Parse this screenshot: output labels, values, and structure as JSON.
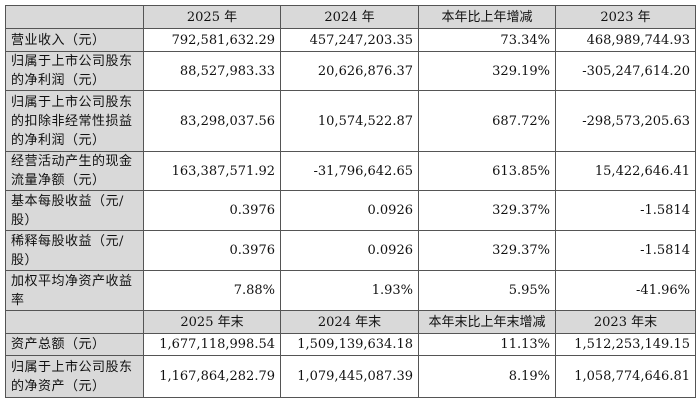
{
  "header1": [
    "",
    "2025 年",
    "2024 年",
    "本年比上年增减",
    "2023 年"
  ],
  "rows1": [
    {
      "label": "营业收入（元）",
      "values": [
        "792,581,632.29",
        "457,247,203.35",
        "73.34%",
        "468,989,744.93"
      ]
    },
    {
      "label": "归属于上市公司股东的净利润（元）",
      "values": [
        "88,527,983.33",
        "20,626,876.37",
        "329.19%",
        "-305,247,614.20"
      ]
    },
    {
      "label": "归属于上市公司股东的扣除非经常性损益的净利润（元）",
      "values": [
        "83,298,037.56",
        "10,574,522.87",
        "687.72%",
        "-298,573,205.63"
      ]
    },
    {
      "label": "经营活动产生的现金流量净额（元）",
      "values": [
        "163,387,571.92",
        "-31,796,642.65",
        "613.85%",
        "15,422,646.41"
      ]
    },
    {
      "label": "基本每股收益（元/股）",
      "values": [
        "0.3976",
        "0.0926",
        "329.37%",
        "-1.5814"
      ]
    },
    {
      "label": "稀释每股收益（元/股）",
      "values": [
        "0.3976",
        "0.0926",
        "329.37%",
        "-1.5814"
      ]
    },
    {
      "label": "加权平均净资产收益率",
      "values": [
        "7.88%",
        "1.93%",
        "5.95%",
        "-41.96%"
      ]
    }
  ],
  "header2": [
    "",
    "2025 年末",
    "2024 年末",
    "本年末比上年末增减",
    "2023 年末"
  ],
  "rows2": [
    {
      "label": "资产总额（元）",
      "values": [
        "1,677,118,998.54",
        "1,509,139,634.18",
        "11.13%",
        "1,512,253,149.15"
      ]
    },
    {
      "label": "归属于上市公司股东的净资产（元）",
      "values": [
        "1,167,864,282.79",
        "1,079,445,087.39",
        "8.19%",
        "1,058,774,646.81"
      ]
    }
  ]
}
